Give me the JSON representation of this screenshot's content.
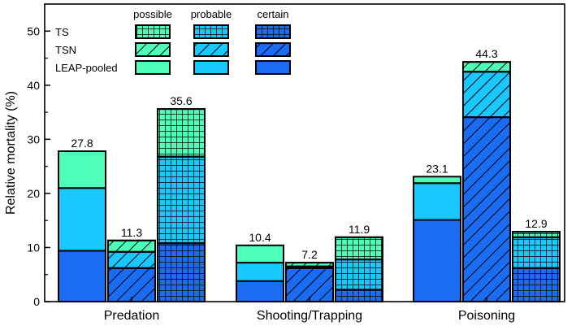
{
  "chart_data": {
    "type": "bar",
    "stacked": true,
    "ylabel": "Relative mortality (%)",
    "xlabel": "",
    "ylim": [
      0,
      55
    ],
    "yticks": [
      0,
      10,
      20,
      30,
      40,
      50
    ],
    "categories": [
      "Predation",
      "Shooting/Trapping",
      "Poisoning"
    ],
    "series_types": [
      "TS",
      "TSN",
      "LEAP-pooled"
    ],
    "confidence_levels": [
      "possible",
      "probable",
      "certain"
    ],
    "colors": {
      "possible": "#4dffb8",
      "probable": "#19c8ff",
      "certain": "#1a6cf2"
    },
    "patterns": {
      "TS": "grid",
      "TSN": "hatch",
      "LEAP-pooled": "solid"
    },
    "groups": [
      {
        "category": "Predation",
        "bars": [
          {
            "series": "LEAP-pooled",
            "certain": 9.4,
            "probable": 11.6,
            "possible": 6.8,
            "total_label": "27.8"
          },
          {
            "series": "TSN",
            "certain": 6.2,
            "probable": 3.0,
            "possible": 2.1,
            "total_label": "11.3"
          },
          {
            "series": "TS",
            "certain": 10.8,
            "probable": 16.0,
            "possible": 8.8,
            "total_label": "35.6"
          }
        ]
      },
      {
        "category": "Shooting/Trapping",
        "bars": [
          {
            "series": "LEAP-pooled",
            "certain": 3.8,
            "probable": 3.4,
            "possible": 3.2,
            "total_label": "10.4"
          },
          {
            "series": "TSN",
            "certain": 6.2,
            "probable": 0.3,
            "possible": 0.7,
            "total_label": "7.2"
          },
          {
            "series": "TS",
            "certain": 2.2,
            "probable": 5.6,
            "possible": 4.1,
            "total_label": "11.9"
          }
        ]
      },
      {
        "category": "Poisoning",
        "bars": [
          {
            "series": "LEAP-pooled",
            "certain": 15.1,
            "probable": 6.8,
            "possible": 1.2,
            "total_label": "23.1"
          },
          {
            "series": "TSN",
            "certain": 34.1,
            "probable": 8.4,
            "possible": 1.8,
            "total_label": "44.3"
          },
          {
            "series": "TS",
            "certain": 6.2,
            "probable": 5.7,
            "possible": 1.0,
            "total_label": "12.9"
          }
        ]
      }
    ],
    "legend": {
      "placement": "top-left",
      "column_headers": [
        "possible",
        "probable",
        "certain"
      ],
      "row_labels": [
        "TS",
        "TSN",
        "LEAP-pooled"
      ]
    }
  }
}
